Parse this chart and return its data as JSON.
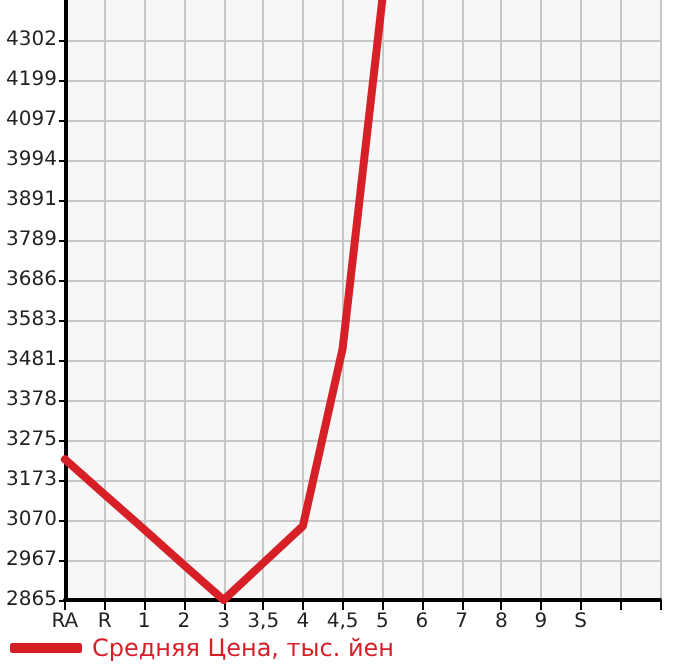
{
  "chart_data": {
    "type": "line",
    "categories": [
      "RA",
      "R",
      "1",
      "2",
      "3",
      "3,5",
      "4",
      "4,5",
      "5",
      "6",
      "7",
      "8",
      "9",
      "S",
      null,
      null
    ],
    "series": [
      {
        "name": "Средняя Цена, тыс. йен",
        "color": "#d61f26",
        "values": [
          3226,
          3136,
          3046,
          2955,
          2865,
          null,
          3055,
          3510,
          4405,
          null,
          null,
          null,
          null,
          null,
          null,
          null
        ]
      }
    ],
    "ylim": [
      2865,
      4405
    ],
    "yticks": [
      2865,
      2967,
      3070,
      3173,
      3275,
      3378,
      3481,
      3583,
      3686,
      3789,
      3891,
      3994,
      4097,
      4199,
      4302
    ],
    "grid": true,
    "legend": "bottom left",
    "marker": "none",
    "line_style": "solid"
  }
}
